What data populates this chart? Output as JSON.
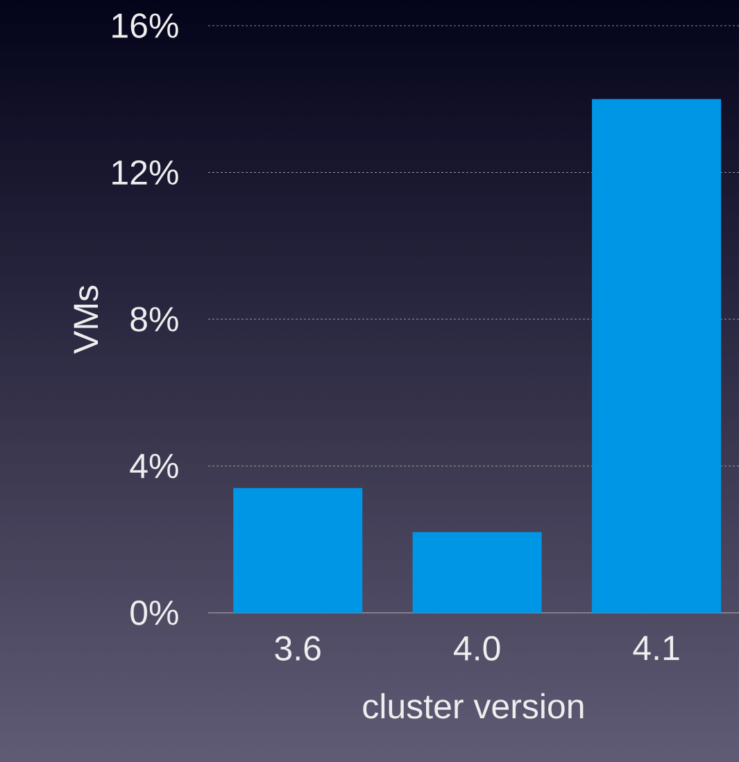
{
  "chart_data": {
    "type": "bar",
    "ylabel": "VMs",
    "xlabel": "cluster version",
    "categories": [
      "3.6",
      "4.0",
      "4.1"
    ],
    "values": [
      3.4,
      2.2,
      14.0
    ],
    "color": "#0096e6",
    "ylim": [
      0,
      16
    ],
    "yticks": [
      {
        "value": 0,
        "label": "0%"
      },
      {
        "value": 4,
        "label": "4%"
      },
      {
        "value": 8,
        "label": "8%"
      },
      {
        "value": 12,
        "label": "12%"
      },
      {
        "value": 16,
        "label": "16%"
      }
    ],
    "grid": "y"
  }
}
